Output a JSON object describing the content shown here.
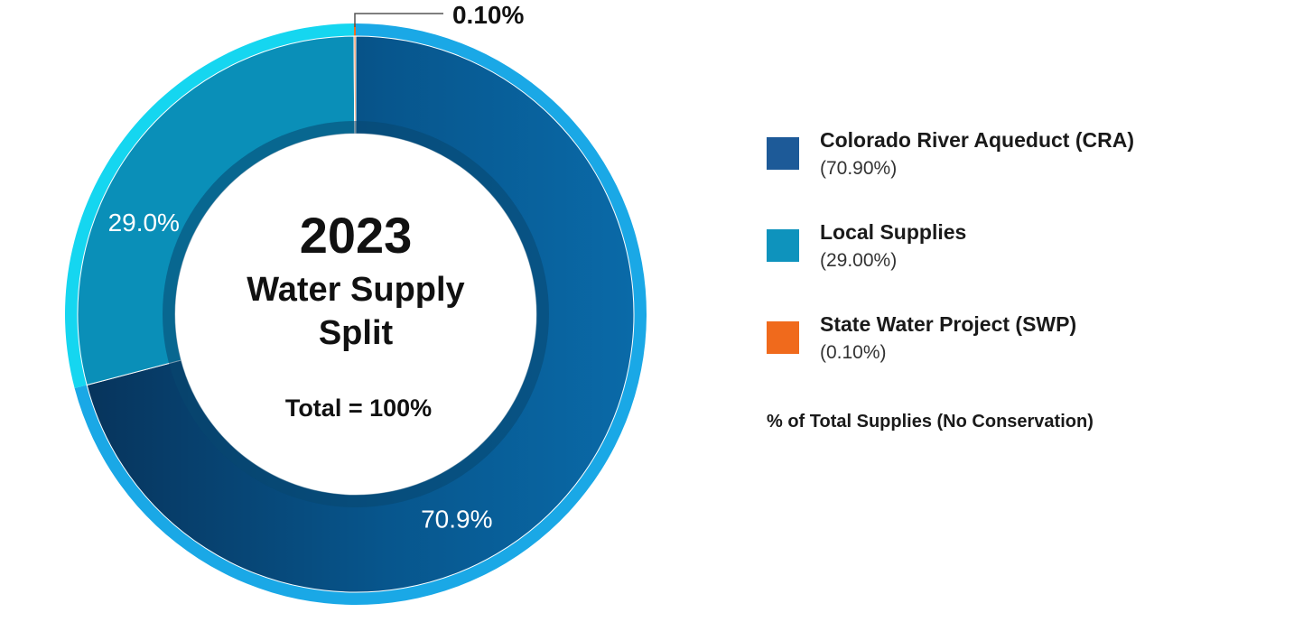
{
  "chart_data": {
    "type": "pie",
    "title": "",
    "center": {
      "year": "2023",
      "title_line1": "Water Supply",
      "title_line2": "Split",
      "total": "Total = 100%"
    },
    "categories": [
      "Colorado River Aqueduct (CRA)",
      "Local Supplies",
      "State Water Project (SWP)"
    ],
    "values": [
      70.9,
      29.0,
      0.1
    ],
    "slice_labels": [
      "70.9%",
      "29.0%",
      "0.10%"
    ],
    "colors": [
      "#0a5f9a",
      "#0a8fb8",
      "#f06a1c"
    ],
    "outer_ring_colors": [
      "#1aa8e6",
      "#15d6f0",
      "#f06a1c"
    ],
    "legend": {
      "position": "right",
      "items": [
        {
          "name": "Colorado River Aqueduct (CRA)",
          "value": "(70.90%)",
          "color": "#1d5a98"
        },
        {
          "name": "Local Supplies",
          "value": "(29.00%)",
          "color": "#0e93bd"
        },
        {
          "name": "State Water Project (SWP)",
          "value": "(0.10%)",
          "color": "#f06a1c"
        }
      ],
      "note": "% of Total Supplies (No Conservation)"
    }
  }
}
